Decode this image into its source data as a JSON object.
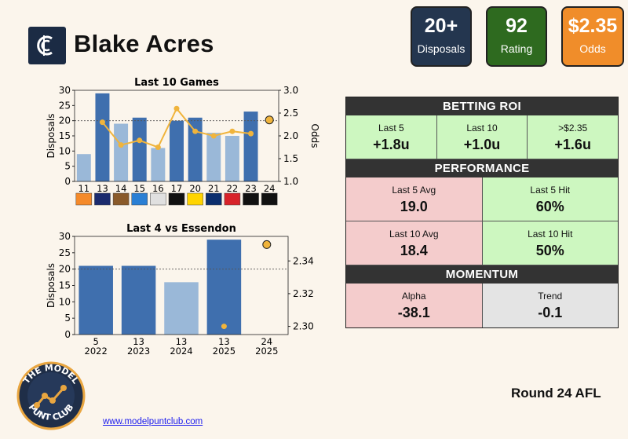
{
  "player": {
    "name": "Blake Acres",
    "club_icon": "carlton-cfc-logo"
  },
  "summary": {
    "disposals": {
      "value": "20+",
      "label": "Disposals"
    },
    "rating": {
      "value": "92",
      "label": "Rating"
    },
    "odds": {
      "value": "$2.35",
      "label": "Odds"
    }
  },
  "chart_data": [
    {
      "type": "bar",
      "title": "Last 10 Games",
      "ylabel": "Disposals",
      "y2label": "Odds",
      "categories": [
        "11",
        "13",
        "14",
        "15",
        "16",
        "17",
        "20",
        "21",
        "22",
        "23",
        "24"
      ],
      "values": [
        9,
        29,
        19,
        21,
        11,
        20,
        21,
        16,
        15,
        23,
        null
      ],
      "bar_colors": [
        "#9ab8d8",
        "#3f6fae",
        "#9ab8d8",
        "#3f6fae",
        "#9ab8d8",
        "#3f6fae",
        "#3f6fae",
        "#9ab8d8",
        "#9ab8d8",
        "#3f6fae",
        null
      ],
      "odds": [
        null,
        2.3,
        1.8,
        1.9,
        1.75,
        2.6,
        2.1,
        2.0,
        2.1,
        2.05,
        2.35
      ],
      "threshold": 20,
      "ylim": [
        0,
        30
      ],
      "yticks": [
        0,
        5,
        10,
        15,
        20,
        25,
        30
      ],
      "y2lim": [
        1.0,
        3.0
      ],
      "y2ticks": [
        "1.0",
        "1.5",
        "2.0",
        "2.5",
        "3.0"
      ],
      "opponent_icons": [
        "gws-icon",
        "adelaide-icon",
        "hawthorn-icon",
        "north-icon",
        "bulldogs-icon",
        "collingwood-icon",
        "richmond-icon",
        "west-coast-icon",
        "gold-coast-icon",
        "port-icon",
        "collingwood-icon"
      ]
    },
    {
      "type": "bar",
      "title": "Last 4 vs Essendon",
      "ylabel": "Disposals",
      "categories": [
        "5\n2022",
        "13\n2023",
        "13\n2024",
        "13\n2025",
        "24\n2025"
      ],
      "values": [
        21,
        21,
        16,
        29,
        null
      ],
      "bar_colors": [
        "#3f6fae",
        "#3f6fae",
        "#9ab8d8",
        "#3f6fae",
        null
      ],
      "odds": [
        null,
        null,
        null,
        2.3,
        2.35
      ],
      "threshold": 20,
      "ylim": [
        0,
        30
      ],
      "yticks": [
        0,
        5,
        10,
        15,
        20,
        25,
        30
      ],
      "y2lim": [
        2.295,
        2.355
      ],
      "y2ticks": [
        "2.30",
        "2.32",
        "2.34"
      ]
    }
  ],
  "roi": {
    "heading": "BETTING ROI",
    "cells": [
      {
        "label": "Last 5",
        "value": "+1.8u"
      },
      {
        "label": "Last 10",
        "value": "+1.0u"
      },
      {
        "label": ">$2.35",
        "value": "+1.6u"
      }
    ]
  },
  "performance": {
    "heading": "PERFORMANCE",
    "rows": [
      [
        {
          "label": "Last 5 Avg",
          "value": "19.0"
        },
        {
          "label": "Last 5 Hit",
          "value": "60%"
        }
      ],
      [
        {
          "label": "Last 10 Avg",
          "value": "18.4"
        },
        {
          "label": "Last 10 Hit",
          "value": "50%"
        }
      ]
    ]
  },
  "momentum": {
    "heading": "MOMENTUM",
    "cells": [
      {
        "label": "Alpha",
        "value": "-38.1"
      },
      {
        "label": "Trend",
        "value": "-0.1"
      }
    ]
  },
  "footer": {
    "round": "Round 24 AFL",
    "url": "www.modelpuntclub.com",
    "brand_top": "THE MODEL",
    "brand_bottom": "PUNT CLUB"
  },
  "colors": {
    "dark_bar": "#3f6fae",
    "light_bar": "#9ab8d8",
    "odds_line": "#f0b43c",
    "positive_cell": "#cdf7c0",
    "negative_cell": "#f4cccc",
    "neutral_cell": "#e4e4e4"
  }
}
